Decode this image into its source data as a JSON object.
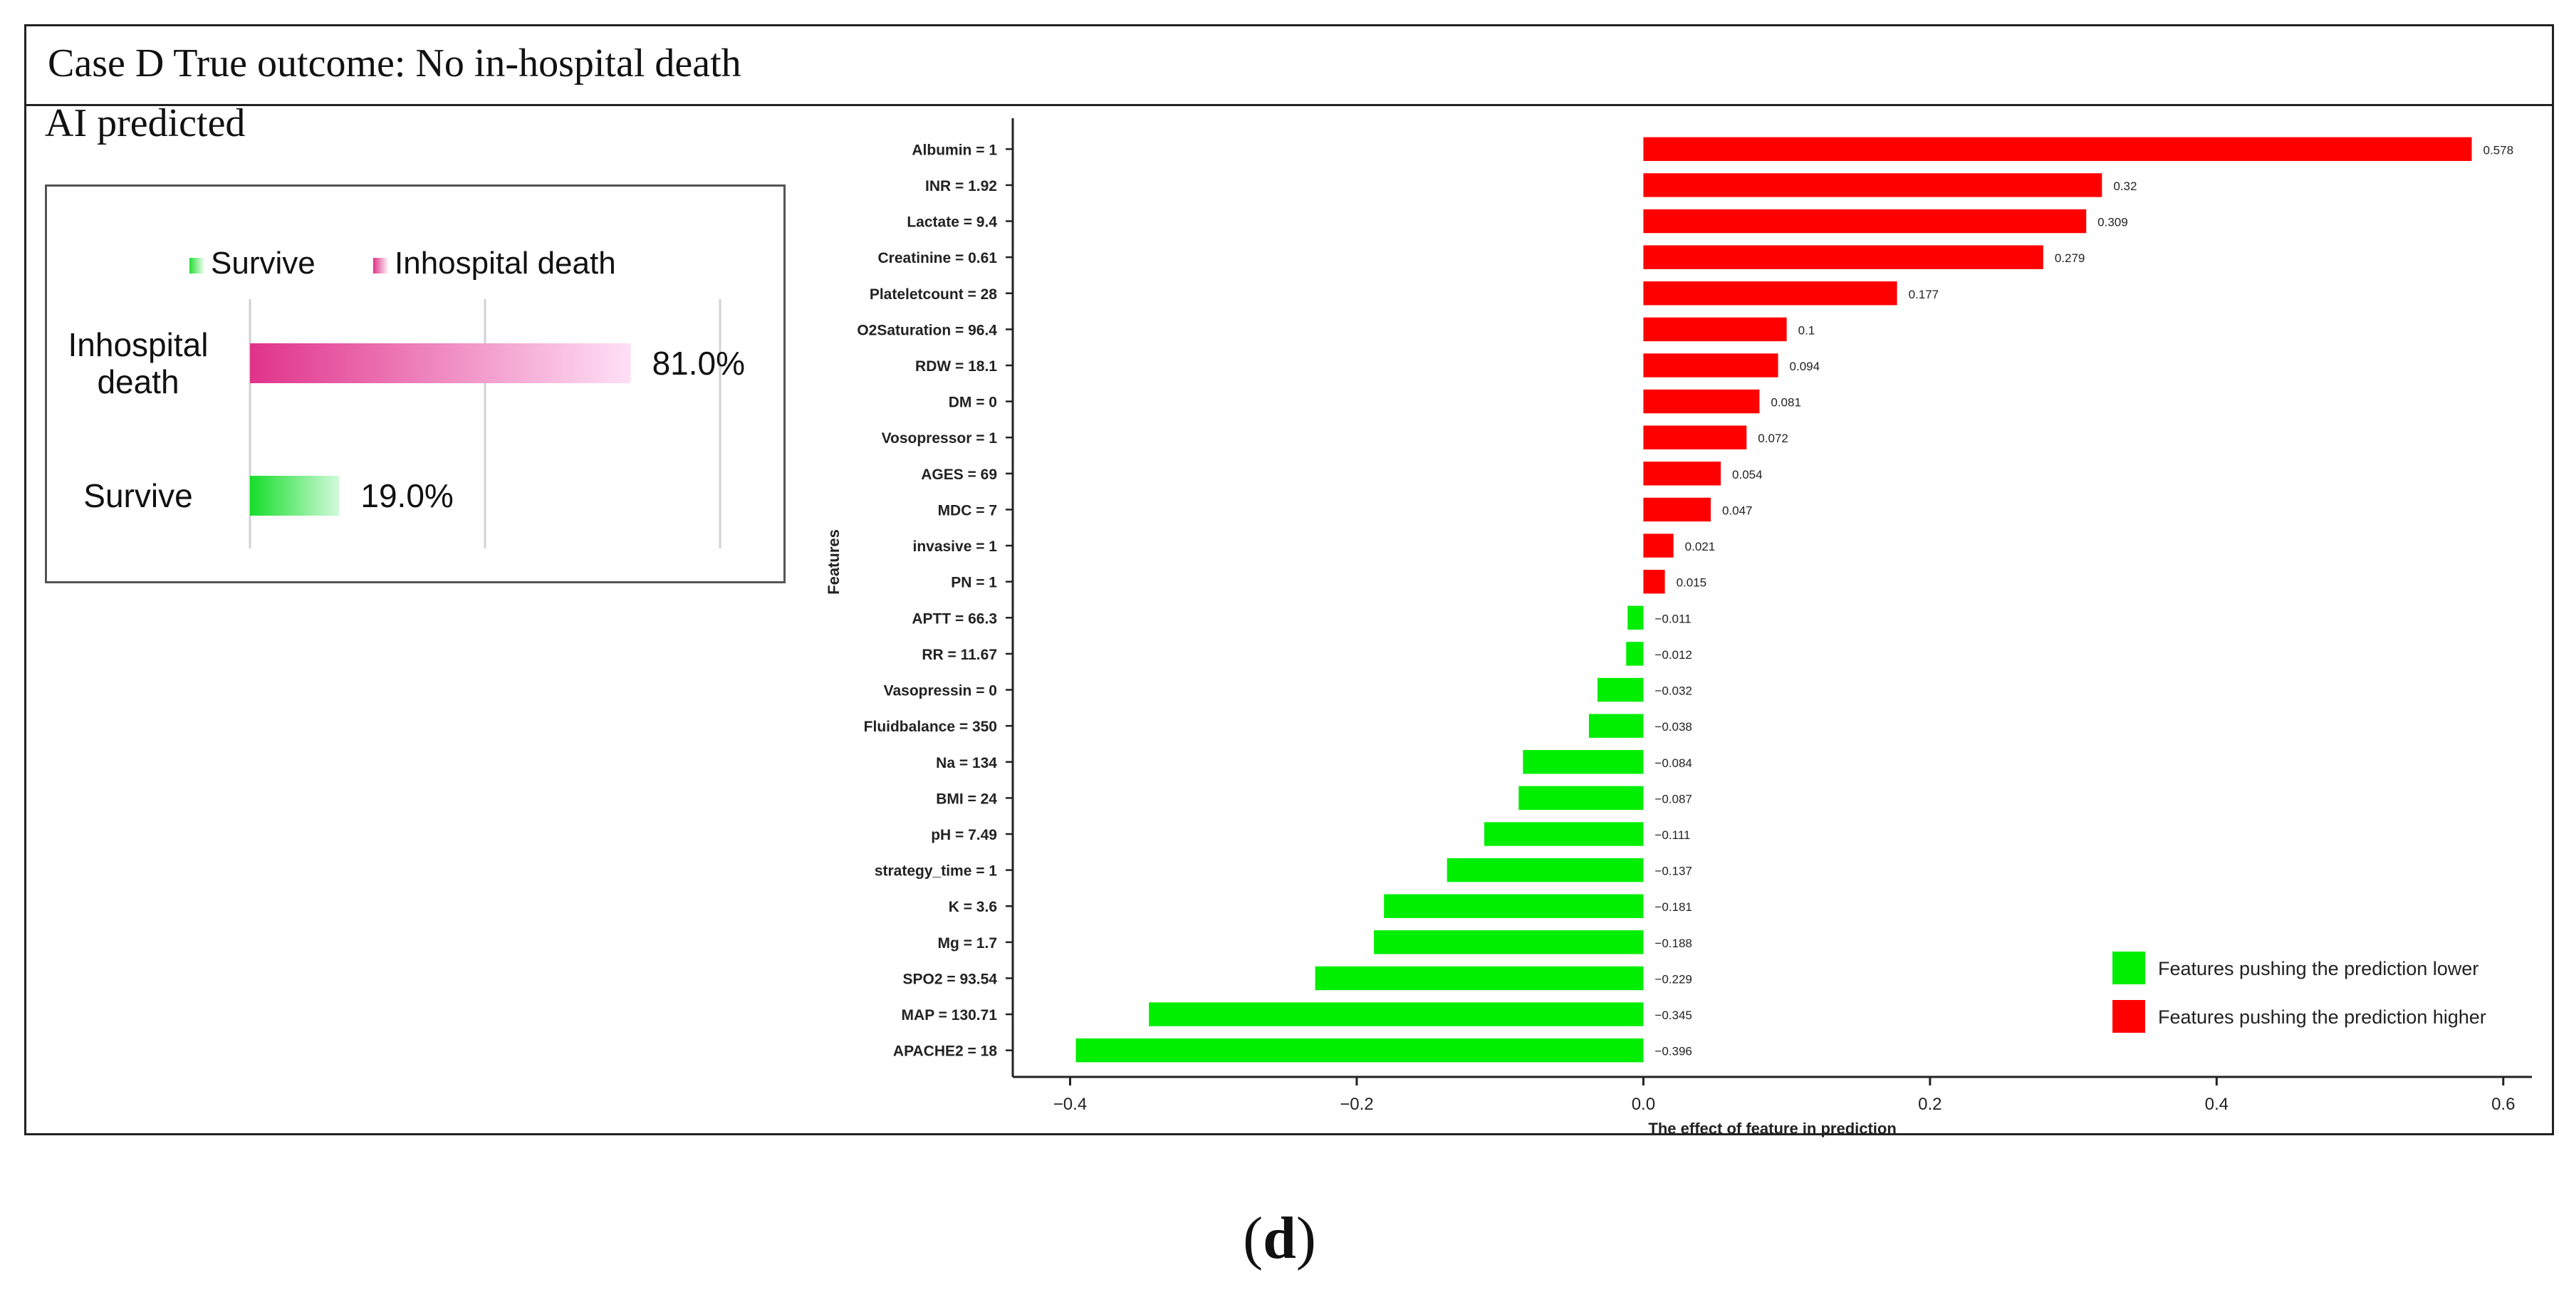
{
  "header": {
    "title": "Case D True outcome: No in-hospital death"
  },
  "prediction_panel": {
    "title": "AI predicted",
    "legend": [
      {
        "label": "Survive",
        "color": "#22dd33"
      },
      {
        "label": "Inhospital death",
        "color": "#e0338a"
      }
    ],
    "bars": [
      {
        "label_lines": [
          "Inhospital",
          "death"
        ],
        "value": 81.0,
        "value_label": "81.0%",
        "color_start": "#e0338a",
        "color_end": "#ffe0f6"
      },
      {
        "label_lines": [
          "Survive"
        ],
        "value": 19.0,
        "value_label": "19.0%",
        "color_start": "#16dd2a",
        "color_end": "#d2fadc"
      }
    ],
    "axis_max": 100
  },
  "chart_data": {
    "type": "bar",
    "orientation": "horizontal",
    "title": "",
    "xlabel": "The effect of feature in prediction",
    "ylabel": "Features",
    "xlim": [
      -0.44,
      0.62
    ],
    "xticks": [
      -0.4,
      -0.2,
      0.0,
      0.2,
      0.4,
      0.6
    ],
    "xtick_labels": [
      "−0.4",
      "−0.2",
      "0.0",
      "0.2",
      "0.4",
      "0.6"
    ],
    "legend": [
      {
        "label": "Features pushing the prediction lower",
        "color": "#00ee00"
      },
      {
        "label": "Features pushing the prediction higher",
        "color": "#ff0000"
      }
    ],
    "positive_color": "#ff0000",
    "negative_color": "#00ee00",
    "categories": [
      "Albumin = 1",
      "INR = 1.92",
      "Lactate = 9.4",
      "Creatinine = 0.61",
      "Plateletcount = 28",
      "O2Saturation = 96.4",
      "RDW = 18.1",
      "DM = 0",
      "Vosopressor = 1",
      "AGES = 69",
      "MDC = 7",
      "invasive = 1",
      "PN = 1",
      "APTT = 66.3",
      "RR = 11.67",
      "Vasopressin = 0",
      "Fluidbalance = 350",
      "Na = 134",
      "BMI = 24",
      "pH = 7.49",
      "strategy_time = 1",
      "K = 3.6",
      "Mg = 1.7",
      "SPO2 = 93.54",
      "MAP = 130.71",
      "APACHE2 = 18"
    ],
    "values": [
      0.578,
      0.32,
      0.309,
      0.279,
      0.177,
      0.1,
      0.094,
      0.081,
      0.072,
      0.054,
      0.047,
      0.021,
      0.015,
      -0.011,
      -0.012,
      -0.032,
      -0.038,
      -0.084,
      -0.087,
      -0.111,
      -0.137,
      -0.181,
      -0.188,
      -0.229,
      -0.345,
      -0.396
    ],
    "value_labels": [
      "0.578",
      "0.32",
      "0.309",
      "0.279",
      "0.177",
      "0.1",
      "0.094",
      "0.081",
      "0.072",
      "0.054",
      "0.047",
      "0.021",
      "0.015",
      "−0.011",
      "−0.012",
      "−0.032",
      "−0.038",
      "−0.084",
      "−0.087",
      "−0.111",
      "−0.137",
      "−0.181",
      "−0.188",
      "−0.229",
      "−0.345",
      "−0.396"
    ]
  },
  "caption": {
    "open": "(",
    "letter": "d",
    "close": ")"
  }
}
